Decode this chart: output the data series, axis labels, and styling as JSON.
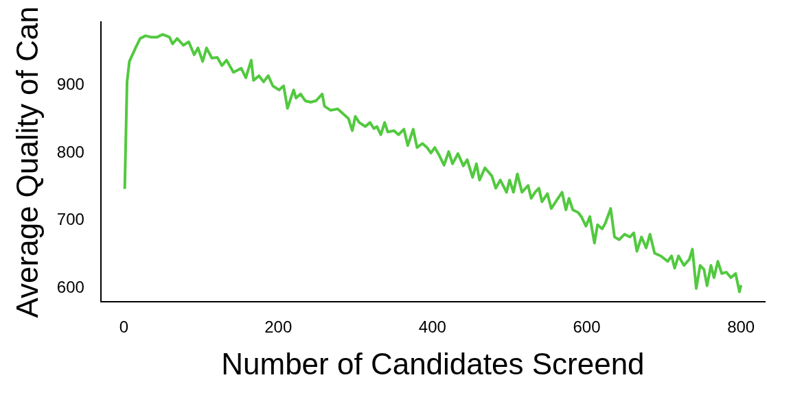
{
  "chart_data": {
    "type": "line",
    "xlabel": "Number of Candidates Screend",
    "ylabel": "Average Quality of Can",
    "xlim": [
      -30,
      831
    ],
    "ylim": [
      580,
      993
    ],
    "xticks": [
      0,
      200,
      400,
      600,
      800
    ],
    "yticks": [
      600,
      700,
      800,
      900
    ],
    "grid": false,
    "legend": false,
    "marker": "none",
    "line_style": "solid",
    "series": [
      {
        "color": "#52c93f",
        "x": [
          1,
          4,
          7,
          15,
          21,
          28,
          35,
          43,
          50,
          59,
          63,
          69,
          77,
          84,
          91,
          96,
          102,
          107,
          114,
          121,
          127,
          133,
          142,
          152,
          158,
          165,
          168,
          175,
          181,
          187,
          193,
          201,
          207,
          212,
          220,
          223,
          229,
          235,
          242,
          249,
          257,
          260,
          268,
          277,
          285,
          291,
          296,
          300,
          305,
          313,
          319,
          324,
          328,
          333,
          338,
          342,
          350,
          356,
          363,
          368,
          375,
          380,
          387,
          393,
          398,
          403,
          409,
          415,
          421,
          426,
          433,
          440,
          445,
          452,
          457,
          461,
          468,
          477,
          482,
          488,
          496,
          500,
          505,
          510,
          516,
          524,
          528,
          533,
          538,
          542,
          549,
          554,
          561,
          568,
          573,
          577,
          582,
          589,
          593,
          599,
          604,
          610,
          614,
          620,
          624,
          631,
          636,
          642,
          649,
          656,
          661,
          665,
          671,
          677,
          682,
          688,
          696,
          705,
          710,
          714,
          719,
          726,
          733,
          737,
          742,
          747,
          752,
          756,
          761,
          765,
          770,
          775,
          781,
          787,
          793,
          798,
          800
        ],
        "values": [
          747,
          905,
          935,
          955,
          969,
          973,
          971,
          971,
          975,
          971,
          961,
          969,
          959,
          964,
          945,
          955,
          935,
          955,
          940,
          941,
          929,
          937,
          919,
          925,
          911,
          937,
          907,
          914,
          905,
          914,
          899,
          893,
          899,
          866,
          893,
          881,
          887,
          877,
          875,
          877,
          887,
          869,
          863,
          865,
          857,
          851,
          833,
          854,
          845,
          839,
          845,
          836,
          839,
          827,
          845,
          831,
          833,
          827,
          835,
          811,
          835,
          808,
          814,
          808,
          800,
          808,
          796,
          782,
          802,
          784,
          799,
          781,
          790,
          764,
          784,
          760,
          778,
          766,
          748,
          760,
          742,
          760,
          742,
          769,
          742,
          752,
          733,
          742,
          748,
          728,
          740,
          718,
          730,
          742,
          716,
          733,
          716,
          712,
          706,
          692,
          706,
          667,
          694,
          688,
          696,
          718,
          676,
          672,
          680,
          676,
          682,
          655,
          676,
          660,
          680,
          652,
          648,
          640,
          648,
          630,
          648,
          634,
          643,
          658,
          600,
          634,
          628,
          604,
          634,
          616,
          640,
          622,
          624,
          616,
          622,
          595,
          605
        ]
      }
    ]
  }
}
